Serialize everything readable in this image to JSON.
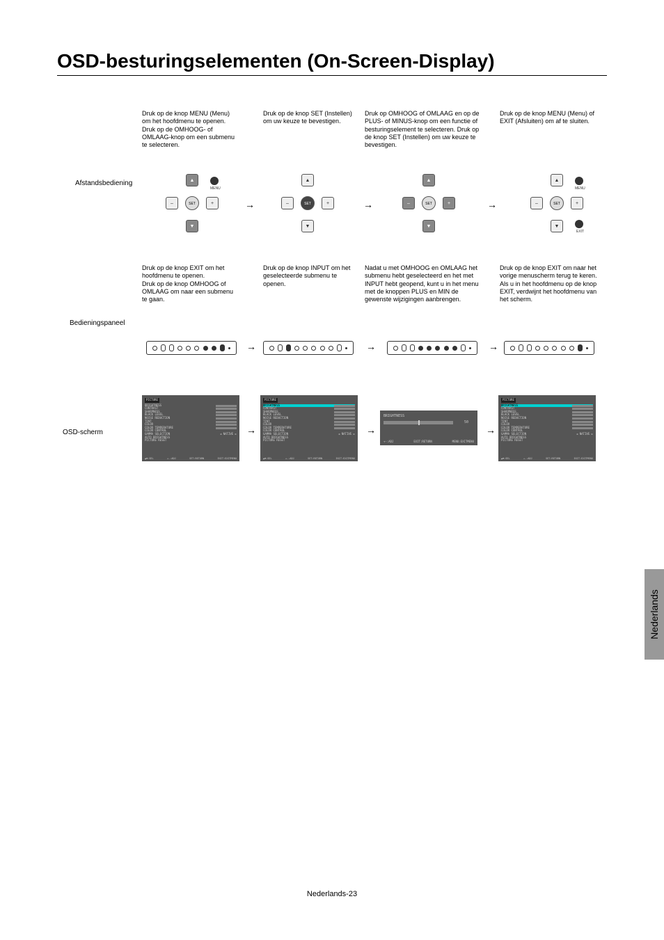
{
  "title": "OSD-besturingselementen (On-Screen-Display)",
  "footer": "Nederlands-23",
  "side_tab": "Nederlands",
  "row_labels": {
    "remote": "Afstandsbediening",
    "panel": "Bedieningspaneel",
    "osd": "OSD-scherm"
  },
  "steps": {
    "s1": {
      "remote_desc": "Druk op de knop MENU (Menu) om het hoofdmenu te openen. Druk op de OMHOOG- of OMLAAG-knop om een submenu te selecteren.",
      "panel_desc": "Druk op de knop EXIT om het hoofdmenu te openen.\nDruk op de knop OMHOOG of OMLAAG om naar een submenu te gaan."
    },
    "s2": {
      "remote_desc": "Druk op de knop SET (Instellen) om uw keuze te bevestigen.",
      "panel_desc": "Druk op de knop INPUT om het geselecteerde submenu te openen."
    },
    "s3": {
      "remote_desc": "Druk op OMHOOG of OMLAAG en op de PLUS- of MINUS-knop om een functie of besturingselement te selecteren. Druk op de knop SET (Instellen) om uw keuze te bevestigen.",
      "panel_desc": "Nadat u met OMHOOG en OMLAAG het submenu hebt geselecteerd en het met INPUT hebt geopend, kunt u in het menu met de knoppen PLUS en MIN de gewenste wijzigingen aanbrengen."
    },
    "s4": {
      "remote_desc": "Druk op de knop MENU (Menu) of EXIT (Afsluiten) om af te sluiten.",
      "panel_desc": "Druk op de knop EXIT om naar het vorige menuscherm terug te keren. Als u in het hoofdmenu op de knop EXIT, verdwijnt het hoofdmenu van het scherm."
    }
  },
  "remote": {
    "set_label": "SET",
    "menu_label": "MENU",
    "exit_label": "EXIT",
    "up": "▲",
    "down": "▼",
    "left": "–",
    "right": "+"
  },
  "osd_menu": {
    "header": "PICTURE",
    "items": [
      "BRIGHTNESS",
      "CONTRAST",
      "SHARPNESS",
      "BLACK LEVEL",
      "NOISE REDUCTION",
      "TINT",
      "COLOR",
      "COLOR TEMPERATURE",
      "COLOR CONTROL",
      "GAMMA SELECTION",
      "AUTO BRIGHTNESS",
      "PICTURE RESET"
    ],
    "value_native": "NATIVE",
    "footer_sel": "▲▼:SEL",
    "footer_adj": "+-:ADJ",
    "footer_return": "SET:RETURN",
    "footer_exit": "EXIT:EXITMENU"
  },
  "osd_adjust": {
    "title": "BRIGHTNESS",
    "value": "50",
    "hint_adj": "+-:ADJ",
    "hint_return": "EXIT:RETURN",
    "hint_exit": "MENU:EXITMENU"
  },
  "panel_highlights": {
    "step1": [
      6,
      7,
      8
    ],
    "step2": [
      2
    ],
    "step3": [
      3,
      4,
      5,
      6,
      7,
      8
    ],
    "step4": [
      8
    ]
  },
  "colors": {
    "osd_bg": "#555555",
    "osd_sel": "#00d0d0",
    "tab_bg": "#999999"
  }
}
